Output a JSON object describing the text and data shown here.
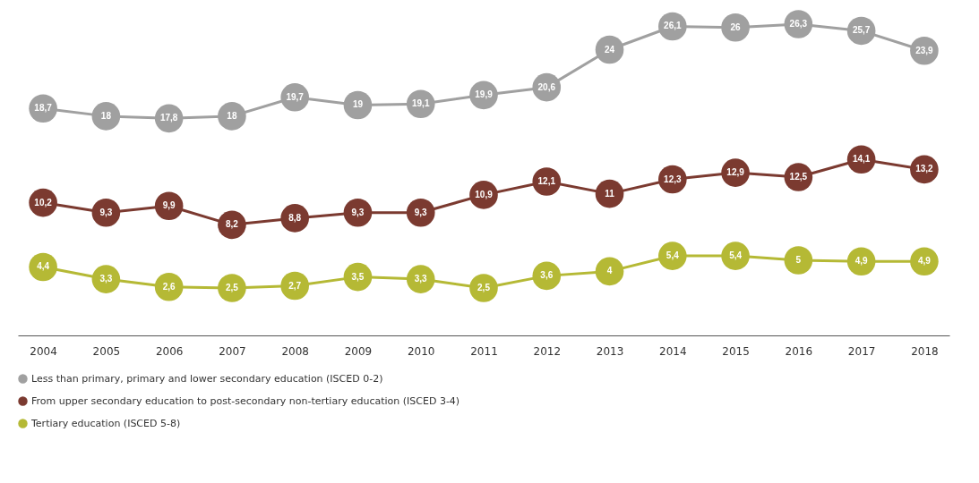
{
  "chart_data": {
    "type": "line",
    "categories": [
      "2004",
      "2005",
      "2006",
      "2007",
      "2008",
      "2009",
      "2010",
      "2011",
      "2012",
      "2013",
      "2014",
      "2015",
      "2016",
      "2017",
      "2018"
    ],
    "marker": "circle",
    "legend": "bottom",
    "series": [
      {
        "name": "Less than primary, primary and lower secondary education (ISCED 0-2)",
        "color": "#a0a0a0",
        "values": [
          18.7,
          18,
          17.8,
          18,
          19.7,
          19,
          19.1,
          19.9,
          20.6,
          24,
          26.1,
          26,
          26.3,
          25.7,
          23.9
        ],
        "value_labels": [
          "18,7",
          "18",
          "17,8",
          "18",
          "19,7",
          "19",
          "19,1",
          "19,9",
          "20,6",
          "24",
          "26,1",
          "26",
          "26,3",
          "25,7",
          "23,9"
        ]
      },
      {
        "name": "From upper secondary education to post-secondary non-tertiary education (ISCED 3-4)",
        "color": "#7b3a30",
        "values": [
          10.2,
          9.3,
          9.9,
          8.2,
          8.8,
          9.3,
          9.3,
          10.9,
          12.1,
          11,
          12.3,
          12.9,
          12.5,
          14.1,
          13.2
        ],
        "value_labels": [
          "10,2",
          "9,3",
          "9,9",
          "8,2",
          "8,8",
          "9,3",
          "9,3",
          "10,9",
          "12,1",
          "11",
          "12,3",
          "12,9",
          "12,5",
          "14,1",
          "13,2"
        ]
      },
      {
        "name": "Tertiary education (ISCED 5-8)",
        "color": "#b5b935",
        "values": [
          4.4,
          3.3,
          2.6,
          2.5,
          2.7,
          3.5,
          3.3,
          2.5,
          3.6,
          4,
          5.4,
          5.4,
          5,
          4.9,
          4.9
        ],
        "value_labels": [
          "4,4",
          "3,3",
          "2,6",
          "2,5",
          "2,7",
          "3,5",
          "3,3",
          "2,5",
          "3,6",
          "4",
          "5,4",
          "5,4",
          "5",
          "4,9",
          "4,9"
        ]
      }
    ]
  }
}
